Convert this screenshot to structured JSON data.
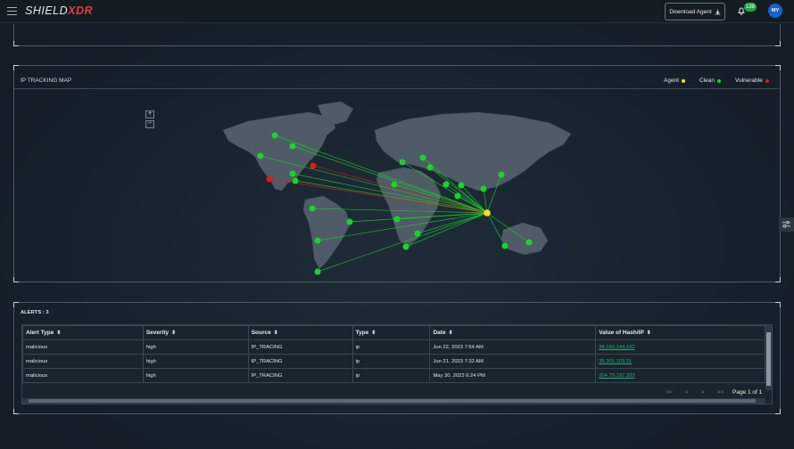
{
  "header": {
    "logo_part1": "SHIELD",
    "logo_part2": "XDR",
    "download_label": "Download Agent",
    "notification_count": "138",
    "avatar_initials": "MY"
  },
  "map": {
    "title": "IP TRACKING MAP",
    "legend": [
      {
        "label": "Agent",
        "color": "#f5e11f"
      },
      {
        "label": "Clean",
        "color": "#19d42a"
      },
      {
        "label": "Vulnerable",
        "color": "#e31b1b"
      }
    ],
    "zoom_in": "+",
    "zoom_out": "−"
  },
  "alerts": {
    "title": "ALERTS : 3",
    "columns": [
      "Alert Type",
      "Severity",
      "Source",
      "Type",
      "Date",
      "Value of Hash/IP"
    ],
    "rows": [
      [
        "malicious",
        "high",
        "IP_TRACING",
        "ip",
        "Jun 22, 2023 7:54 AM",
        "34.160.144.191"
      ],
      [
        "malicious",
        "high",
        "IP_TRACING",
        "ip",
        "Jun 21, 2023 7:32 AM",
        "35.201.103.21"
      ],
      [
        "malicious",
        "high",
        "IP_TRACING",
        "ip",
        "May 30, 2023 6:24 PM",
        "204.79.197.203"
      ]
    ],
    "pager": {
      "first": "<<",
      "prev": "<",
      "next": ">",
      "last": ">>",
      "page_label": "Page 1 of 1"
    }
  }
}
